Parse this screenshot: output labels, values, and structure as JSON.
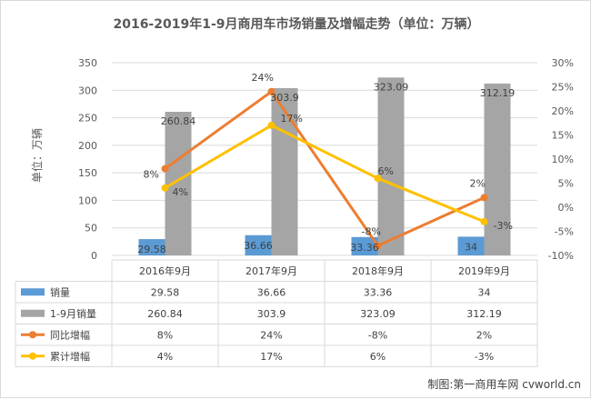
{
  "chart_data": {
    "type": "bar",
    "title": "2016-2019年1-9月商用车市场销量及增幅走势（单位：万辆）",
    "ylabel": "单位：万辆",
    "categories": [
      "2016年9月",
      "2017年9月",
      "2018年9月",
      "2019年9月"
    ],
    "ylim": [
      0,
      350
    ],
    "y_ticks": [
      "0",
      "50",
      "100",
      "150",
      "200",
      "250",
      "300",
      "350"
    ],
    "y2lim": [
      -10,
      30
    ],
    "y2_ticks": [
      "-10%",
      "-5%",
      "0%",
      "5%",
      "10%",
      "15%",
      "20%",
      "25%",
      "30%"
    ],
    "series": [
      {
        "name": "销量",
        "type": "bar",
        "axis": "left",
        "color": "#5b9bd5",
        "values": [
          29.58,
          36.66,
          33.36,
          34
        ],
        "labels": [
          "29.58",
          "36.66",
          "33.36",
          "34"
        ]
      },
      {
        "name": "1-9月销量",
        "type": "bar",
        "axis": "left",
        "color": "#a5a5a5",
        "values": [
          260.84,
          303.9,
          323.09,
          312.19
        ],
        "labels": [
          "260.84",
          "303.9",
          "323.09",
          "312.19"
        ]
      },
      {
        "name": "同比增幅",
        "type": "line",
        "axis": "right",
        "color": "#ed7d31",
        "values": [
          8,
          24,
          -8,
          2
        ],
        "labels": [
          "8%",
          "24%",
          "-8%",
          "2%"
        ]
      },
      {
        "name": "累计增幅",
        "type": "line",
        "axis": "right",
        "color": "#ffc000",
        "values": [
          4,
          17,
          6,
          -3
        ],
        "labels": [
          "4%",
          "17%",
          "6%",
          "-3%"
        ]
      }
    ],
    "table": [
      [
        "29.58",
        "36.66",
        "33.36",
        "34"
      ],
      [
        "260.84",
        "303.9",
        "323.09",
        "312.19"
      ],
      [
        "8%",
        "24%",
        "-8%",
        "2%"
      ],
      [
        "4%",
        "17%",
        "6%",
        "-3%"
      ]
    ],
    "grid": true,
    "legend": "data-table"
  },
  "credit": "制图:第一商用车网 cvworld.cn"
}
